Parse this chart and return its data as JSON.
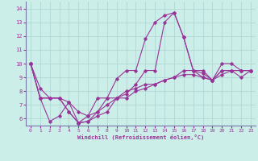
{
  "xlabel": "Windchill (Refroidissement éolien,°C)",
  "background_color": "#cceee8",
  "grid_color": "#b0d8d4",
  "line_color": "#993399",
  "spine_color": "#7777aa",
  "xlim": [
    -0.5,
    23.5
  ],
  "ylim": [
    5.5,
    14.5
  ],
  "yticks": [
    6,
    7,
    8,
    9,
    10,
    11,
    12,
    13,
    14
  ],
  "xticks": [
    0,
    1,
    2,
    3,
    4,
    5,
    6,
    7,
    8,
    9,
    10,
    11,
    12,
    13,
    14,
    15,
    16,
    17,
    18,
    19,
    20,
    21,
    22,
    23
  ],
  "lines": [
    [
      10.0,
      8.2,
      7.5,
      7.5,
      7.2,
      6.5,
      6.2,
      7.5,
      7.5,
      8.9,
      9.5,
      9.5,
      11.8,
      13.0,
      13.5,
      13.7,
      11.9,
      9.5,
      9.5,
      8.8,
      10.0,
      10.0,
      9.5,
      9.5
    ],
    [
      10.0,
      7.5,
      5.8,
      6.2,
      7.2,
      5.7,
      5.8,
      6.5,
      7.0,
      7.5,
      7.8,
      8.5,
      9.5,
      9.5,
      13.0,
      13.7,
      11.9,
      9.5,
      9.3,
      8.8,
      9.5,
      9.5,
      9.0,
      9.5
    ],
    [
      10.0,
      7.5,
      7.5,
      7.5,
      6.5,
      5.7,
      6.2,
      6.5,
      7.5,
      7.5,
      8.0,
      8.2,
      8.5,
      8.5,
      8.8,
      9.0,
      9.5,
      9.5,
      9.0,
      8.8,
      9.5,
      9.5,
      9.5,
      9.5
    ],
    [
      10.0,
      7.5,
      7.5,
      7.5,
      6.5,
      5.7,
      5.8,
      6.2,
      6.5,
      7.5,
      7.5,
      8.0,
      8.2,
      8.5,
      8.8,
      9.0,
      9.2,
      9.2,
      9.0,
      8.8,
      9.2,
      9.5,
      9.5,
      9.5
    ]
  ]
}
